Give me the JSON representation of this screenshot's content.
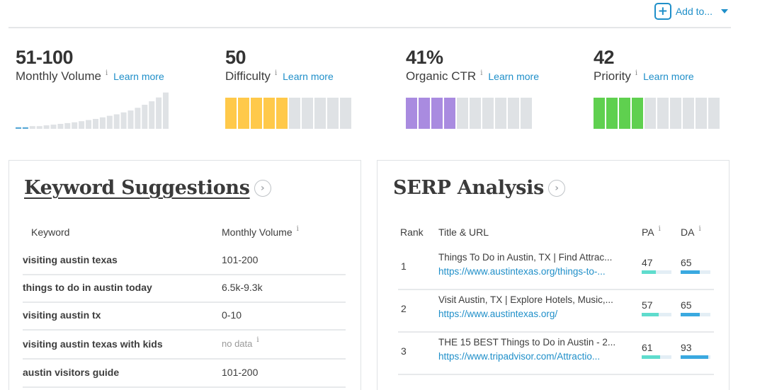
{
  "toolbar": {
    "add_to_label": "Add to..."
  },
  "metrics": [
    {
      "value": "51-100",
      "label": "Monthly Volume",
      "learn_more": "Learn more"
    },
    {
      "value": "50",
      "label": "Difficulty",
      "learn_more": "Learn more",
      "fill_segments": 5,
      "total_segments": 10,
      "color": "#ffc94a"
    },
    {
      "value": "41%",
      "label": "Organic CTR",
      "learn_more": "Learn more",
      "fill_segments": 4,
      "total_segments": 10,
      "color": "#a98be0"
    },
    {
      "value": "42",
      "label": "Priority",
      "learn_more": "Learn more",
      "fill_segments": 4,
      "total_segments": 10,
      "color": "#5fd04f"
    }
  ],
  "volume_bars": [
    0.04,
    0.04,
    0.07,
    0.07,
    0.09,
    0.11,
    0.13,
    0.15,
    0.17,
    0.2,
    0.23,
    0.26,
    0.3,
    0.34,
    0.38,
    0.43,
    0.48,
    0.55,
    0.63,
    0.72,
    0.82,
    0.95
  ],
  "keyword_suggestions": {
    "title": "Keyword Suggestions",
    "headers": {
      "keyword": "Keyword",
      "volume": "Monthly Volume"
    },
    "rows": [
      {
        "keyword": "visiting austin texas",
        "volume": "101-200"
      },
      {
        "keyword": "things to do in austin today",
        "volume": "6.5k-9.3k"
      },
      {
        "keyword": "visiting austin tx",
        "volume": "0-10"
      },
      {
        "keyword": "visiting austin texas with kids",
        "volume": "no data"
      },
      {
        "keyword": "austin visitors guide",
        "volume": "101-200"
      }
    ]
  },
  "serp_analysis": {
    "title": "SERP Analysis",
    "headers": {
      "rank": "Rank",
      "title_url": "Title & URL",
      "pa": "PA",
      "da": "DA"
    },
    "rows": [
      {
        "rank": "1",
        "title": "Things To Do in Austin, TX | Find Attrac...",
        "url": "https://www.austintexas.org/things-to-...",
        "pa": "47",
        "da": "65"
      },
      {
        "rank": "2",
        "title": "Visit Austin, TX | Explore Hotels, Music,...",
        "url": "https://www.austintexas.org/",
        "pa": "57",
        "da": "65"
      },
      {
        "rank": "3",
        "title": "THE 15 BEST Things to Do in Austin - 2...",
        "url": "https://www.tripadvisor.com/Attractio...",
        "pa": "61",
        "da": "93"
      }
    ]
  },
  "colors": {
    "link": "#1f8fc9",
    "pa_bar": "#5fdccd",
    "da_bar": "#3aa9e0"
  }
}
